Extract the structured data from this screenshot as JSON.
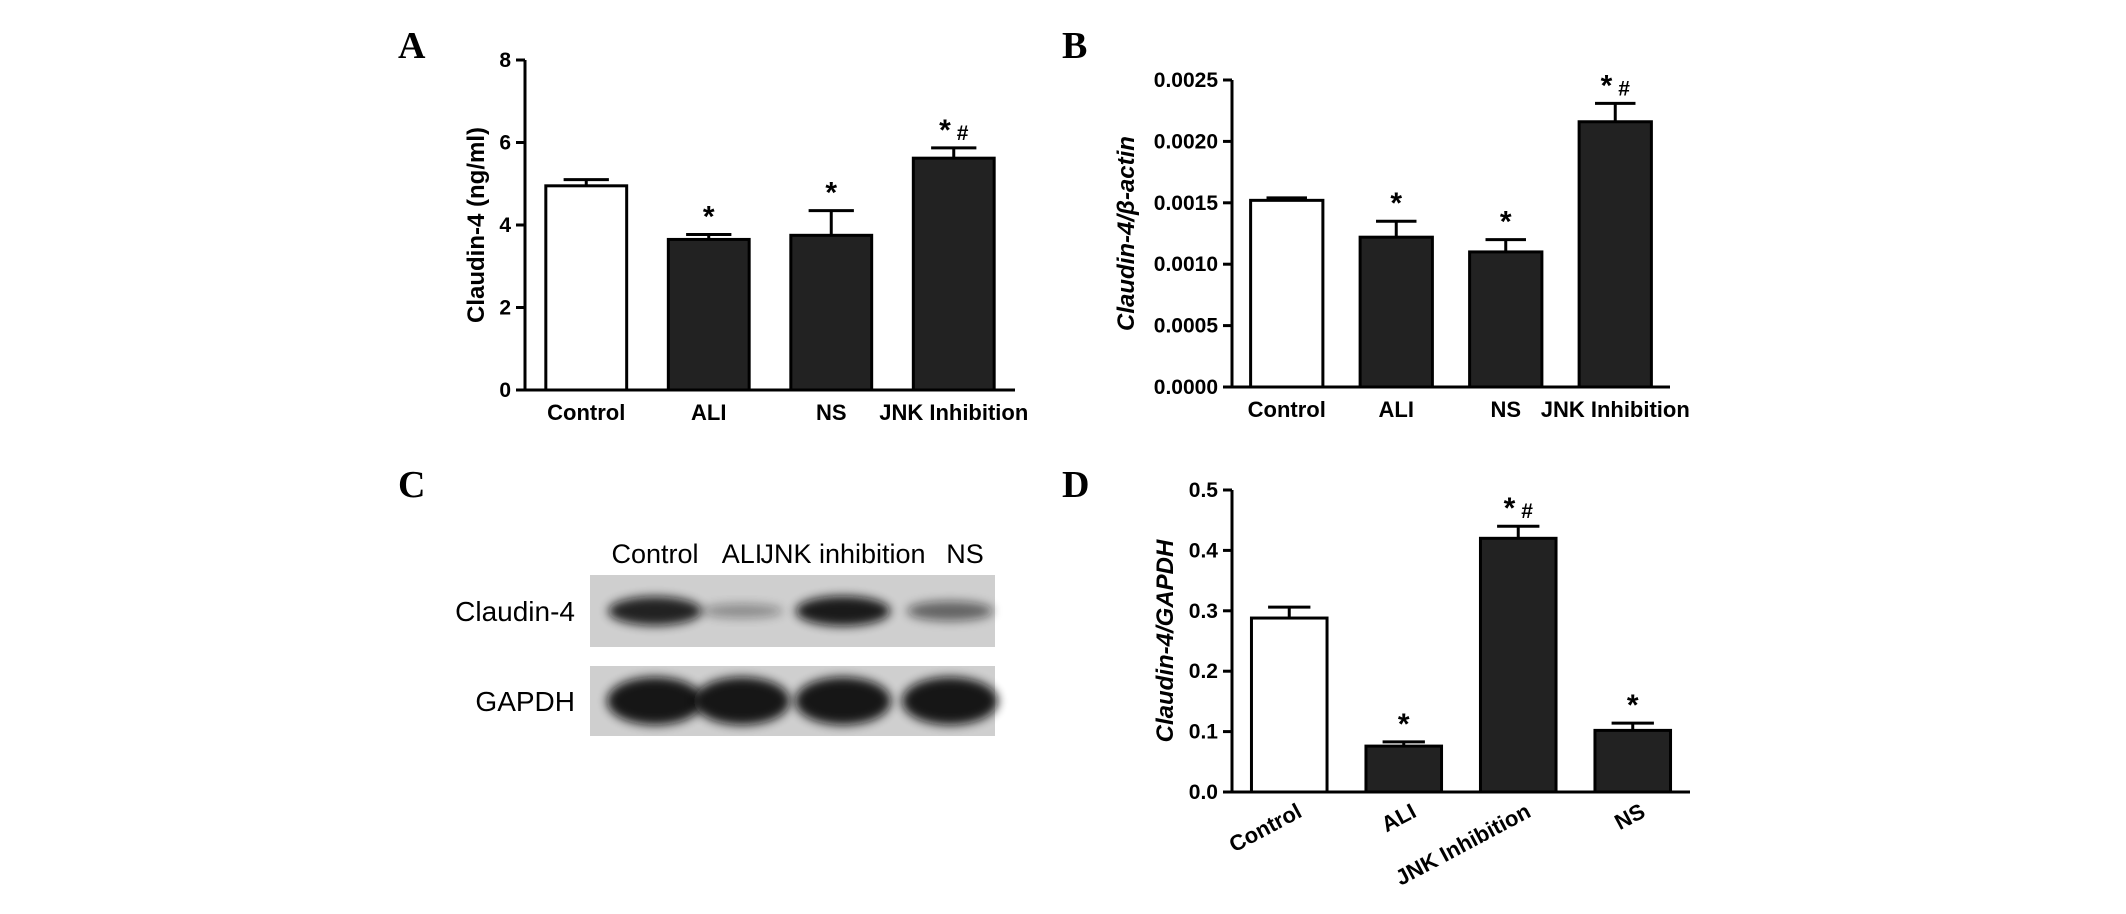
{
  "chart_data": [
    {
      "panel": "A",
      "type": "bar",
      "categories": [
        "Control",
        "ALI",
        "NS",
        "JNK Inhibition"
      ],
      "values": [
        4.95,
        3.65,
        3.75,
        5.62
      ],
      "errors": [
        0.15,
        0.12,
        0.6,
        0.25
      ],
      "significance": [
        "",
        "*",
        "*",
        "* #"
      ],
      "fills": [
        "#ffffff",
        "#222222",
        "#222222",
        "#222222"
      ],
      "ylabel": "Claudin-4 (ng/ml)",
      "ylim": [
        0,
        8
      ],
      "yticks": [
        "0",
        "2",
        "4",
        "6",
        "8"
      ]
    },
    {
      "panel": "B",
      "type": "bar",
      "categories": [
        "Control",
        "ALI",
        "NS",
        "JNK Inhibition"
      ],
      "values": [
        0.00152,
        0.00122,
        0.0011,
        0.00216
      ],
      "errors": [
        2e-05,
        0.00013,
        0.0001,
        0.00015
      ],
      "significance": [
        "",
        "*",
        "*",
        "* #"
      ],
      "fills": [
        "#ffffff",
        "#222222",
        "#222222",
        "#222222"
      ],
      "ylabel": "Claudin-4/β-actin",
      "ylim": [
        0,
        0.0025
      ],
      "yticks": [
        "0.0000",
        "0.0005",
        "0.0010",
        "0.0015",
        "0.0020",
        "0.0025"
      ]
    },
    {
      "panel": "D",
      "type": "bar",
      "categories": [
        "Control",
        "ALI",
        "JNK Inhibition",
        "NS"
      ],
      "values": [
        0.288,
        0.076,
        0.42,
        0.102
      ],
      "errors": [
        0.018,
        0.007,
        0.02,
        0.012
      ],
      "significance": [
        "",
        "*",
        "* #",
        "*"
      ],
      "fills": [
        "#ffffff",
        "#222222",
        "#222222",
        "#222222"
      ],
      "ylabel": "Claudin-4/GAPDH",
      "ylim": [
        0,
        0.5
      ],
      "yticks": [
        "0.0",
        "0.1",
        "0.2",
        "0.3",
        "0.4",
        "0.5"
      ]
    }
  ],
  "blot": {
    "panel": "C",
    "lanes": [
      "Control",
      "ALI",
      "JNK inhibition",
      "NS"
    ],
    "rows": [
      {
        "name": "Claudin-4",
        "intensity": [
          0.85,
          0.12,
          0.9,
          0.4
        ]
      },
      {
        "name": "GAPDH",
        "intensity": [
          1,
          1,
          1,
          1
        ]
      }
    ]
  },
  "colors": {
    "bar_dark": "#222222",
    "bar_light": "#ffffff",
    "blot_bg": "#cfcfcf",
    "band": "#111111"
  }
}
